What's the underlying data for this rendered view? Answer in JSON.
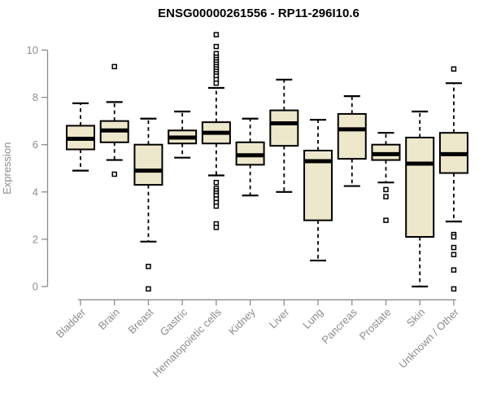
{
  "chart_data": {
    "type": "boxplot",
    "title": "ENSG00000261556 - RP11-296I10.6",
    "ylabel": "Expression",
    "xlabel": "",
    "ylim": [
      0,
      10
    ],
    "yticks": [
      0,
      2,
      4,
      6,
      8,
      10
    ],
    "grid": false,
    "legend": "none",
    "categories": [
      "Bladder",
      "Brain",
      "Breast",
      "Gastric",
      "Hematopoietic cells",
      "Kidney",
      "Liver",
      "Lung",
      "Pancreas",
      "Prostate",
      "Skin",
      "Unknown / Other"
    ],
    "series": [
      {
        "category": "Bladder",
        "whisker_low": 4.9,
        "q1": 5.8,
        "median": 6.25,
        "q3": 6.8,
        "whisker_high": 7.75,
        "outliers": []
      },
      {
        "category": "Brain",
        "whisker_low": 5.35,
        "q1": 6.1,
        "median": 6.6,
        "q3": 7.0,
        "whisker_high": 7.8,
        "outliers": [
          9.3,
          4.75
        ]
      },
      {
        "category": "Breast",
        "whisker_low": 1.9,
        "q1": 4.3,
        "median": 4.9,
        "q3": 6.0,
        "whisker_high": 7.1,
        "outliers": [
          0.85,
          -0.1
        ]
      },
      {
        "category": "Gastric",
        "whisker_low": 5.45,
        "q1": 6.05,
        "median": 6.3,
        "q3": 6.6,
        "whisker_high": 7.4,
        "outliers": []
      },
      {
        "category": "Hematopoietic cells",
        "whisker_low": 4.7,
        "q1": 6.05,
        "median": 6.5,
        "q3": 6.95,
        "whisker_high": 8.4,
        "outliers": [
          10.65,
          10.15,
          9.85,
          9.7,
          9.6,
          9.5,
          9.4,
          9.3,
          9.2,
          9.1,
          9.0,
          8.9,
          8.75,
          8.6,
          4.4,
          4.15,
          4.05,
          3.95,
          3.85,
          3.7,
          3.55,
          3.4,
          2.65,
          2.5
        ]
      },
      {
        "category": "Kidney",
        "whisker_low": 3.85,
        "q1": 5.15,
        "median": 5.55,
        "q3": 6.1,
        "whisker_high": 7.1,
        "outliers": []
      },
      {
        "category": "Liver",
        "whisker_low": 4.0,
        "q1": 5.95,
        "median": 6.9,
        "q3": 7.45,
        "whisker_high": 8.75,
        "outliers": []
      },
      {
        "category": "Lung",
        "whisker_low": 1.1,
        "q1": 2.8,
        "median": 5.3,
        "q3": 5.75,
        "whisker_high": 7.05,
        "outliers": []
      },
      {
        "category": "Pancreas",
        "whisker_low": 4.25,
        "q1": 5.4,
        "median": 6.65,
        "q3": 7.3,
        "whisker_high": 8.05,
        "outliers": []
      },
      {
        "category": "Prostate",
        "whisker_low": 4.4,
        "q1": 5.35,
        "median": 5.6,
        "q3": 6.0,
        "whisker_high": 6.5,
        "outliers": [
          4.1,
          3.8,
          2.8
        ]
      },
      {
        "category": "Skin",
        "whisker_low": 0.0,
        "q1": 2.1,
        "median": 5.2,
        "q3": 6.3,
        "whisker_high": 7.4,
        "outliers": []
      },
      {
        "category": "Unknown / Other",
        "whisker_low": 2.75,
        "q1": 4.8,
        "median": 5.6,
        "q3": 6.5,
        "whisker_high": 8.6,
        "outliers": [
          9.2,
          2.2,
          2.1,
          1.65,
          1.35,
          0.7,
          -0.1
        ]
      }
    ],
    "colors": {
      "box_fill": "#EDE7CC",
      "box_stroke": "#000000",
      "median": "#000000",
      "whisker": "#000000",
      "outlier_stroke": "#000000",
      "outlier_fill": "#ffffff",
      "axis": "#8C8C8C",
      "tick_label": "#8C8C8C",
      "title": "#000000",
      "background": "#ffffff"
    }
  }
}
